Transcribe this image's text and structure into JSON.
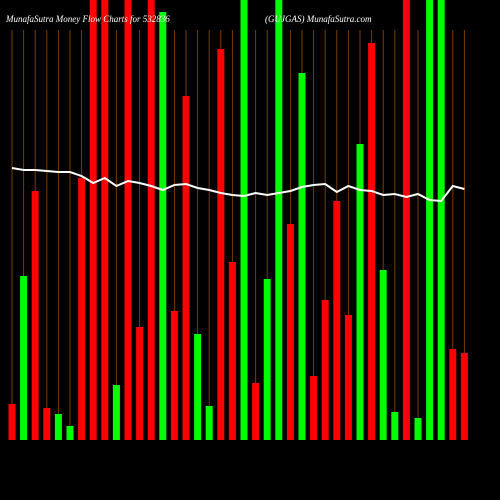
{
  "chart_data": {
    "type": "bar",
    "title": "MunafaSutra  Money Flow  Charts for 532836",
    "subtitle": "(GUJGAS) MunafaSutra.com",
    "ylim": [
      0,
      440
    ],
    "values": [
      36,
      164,
      249,
      32,
      26,
      14,
      262,
      440,
      440,
      55,
      440,
      113,
      440,
      428,
      129,
      344,
      106,
      34,
      391,
      178,
      440,
      57,
      161,
      440,
      216,
      367,
      64,
      140,
      239,
      125,
      296,
      397,
      170,
      28,
      440,
      22,
      440,
      440,
      91,
      87
    ],
    "colors": [
      "#ff0000",
      "#00ff00",
      "#ff0000",
      "#ff0000",
      "#00ff00",
      "#00ff00",
      "#ff0000",
      "#ff0000",
      "#ff0000",
      "#00ff00",
      "#ff0000",
      "#ff0000",
      "#ff0000",
      "#00ff00",
      "#ff0000",
      "#ff0000",
      "#00ff00",
      "#00ff00",
      "#ff0000",
      "#ff0000",
      "#00ff00",
      "#ff0000",
      "#00ff00",
      "#00ff00",
      "#ff0000",
      "#00ff00",
      "#ff0000",
      "#ff0000",
      "#ff0000",
      "#ff0000",
      "#00ff00",
      "#ff0000",
      "#00ff00",
      "#00ff00",
      "#ff0000",
      "#00ff00",
      "#00ff00",
      "#00ff00",
      "#ff0000",
      "#ff0000"
    ],
    "line": {
      "color": "#ffffff",
      "values": [
        272,
        270,
        270,
        269,
        268,
        268,
        264,
        257,
        262,
        254,
        259,
        257,
        254,
        250,
        255,
        256,
        252,
        250,
        247,
        245,
        244,
        247,
        245,
        247,
        249,
        253,
        255,
        256,
        248,
        254,
        250,
        249,
        245,
        246,
        243,
        246,
        240,
        239,
        254,
        251
      ]
    }
  }
}
